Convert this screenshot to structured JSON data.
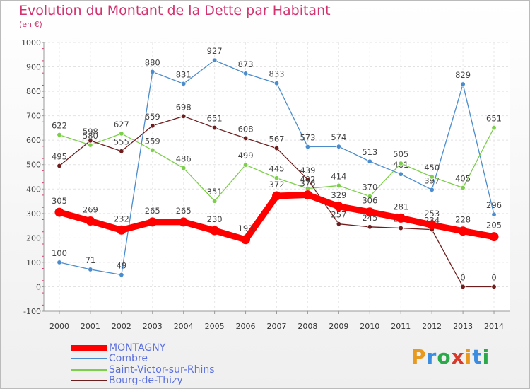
{
  "header": {
    "title": "Evolution du Montant de la Dette par Habitant",
    "unit": "(en €)"
  },
  "logo": {
    "text": "Proxiti",
    "letter_colors": [
      "#e89a1e",
      "#3a8de0",
      "#2aa84a",
      "#d63a2a",
      "#e89a1e",
      "#3a8de0",
      "#2aa84a"
    ]
  },
  "chart_data": {
    "type": "line",
    "title": "Evolution du Montant de la Dette par Habitant",
    "ylabel": "(en €)",
    "xlabel": "",
    "ylim": [
      -100,
      1000
    ],
    "yticks": [
      -100,
      0,
      100,
      200,
      300,
      400,
      500,
      600,
      700,
      800,
      900,
      1000
    ],
    "categories": [
      "2000",
      "2001",
      "2002",
      "2003",
      "2004",
      "2005",
      "2006",
      "2007",
      "2008",
      "2009",
      "2010",
      "2011",
      "2012",
      "2013",
      "2014"
    ],
    "grid": true,
    "legend_position": "bottom-left",
    "series": [
      {
        "name": "Combre",
        "color": "#4a8ccc",
        "values": [
          100,
          71,
          49,
          880,
          831,
          927,
          873,
          833,
          573,
          574,
          513,
          461,
          397,
          829,
          296
        ],
        "labels": [
          "100",
          "71",
          "49",
          "880",
          "831",
          "927",
          "873",
          "833",
          "573",
          "574",
          "513",
          "461",
          "397",
          "829",
          "296"
        ]
      },
      {
        "name": "Saint-Victor-sur-Rhins",
        "color": "#7ccf4a",
        "values": [
          622,
          580,
          627,
          559,
          486,
          351,
          499,
          445,
          402,
          414,
          370,
          505,
          450,
          405,
          651
        ],
        "labels": [
          "622",
          "580",
          "627",
          "559",
          "486",
          "351",
          "499",
          "445",
          "402",
          "414",
          "370",
          "505",
          "450",
          "405",
          "651"
        ]
      },
      {
        "name": "Bourg-de-Thizy",
        "color": "#6e1c1c",
        "values": [
          495,
          598,
          555,
          659,
          698,
          651,
          608,
          567,
          439,
          257,
          245,
          240,
          234,
          0,
          0
        ],
        "labels": [
          "495",
          "598",
          "555",
          "659",
          "698",
          "651",
          "608",
          "567",
          "439",
          "257",
          "245",
          "240",
          "234",
          "0",
          "0"
        ]
      },
      {
        "name": "MONTAGNY",
        "color": "#ff0000",
        "values": [
          305,
          269,
          232,
          265,
          265,
          230,
          193,
          372,
          376,
          329,
          306,
          281,
          253,
          228,
          205
        ],
        "labels": [
          "305",
          "269",
          "232",
          "265",
          "265",
          "230",
          "193",
          "372",
          "376",
          "329",
          "306",
          "281",
          "253",
          "228",
          "205"
        ]
      }
    ],
    "legend_order": [
      "MONTAGNY",
      "Combre",
      "Saint-Victor-sur-Rhins",
      "Bourg-de-Thizy"
    ]
  }
}
